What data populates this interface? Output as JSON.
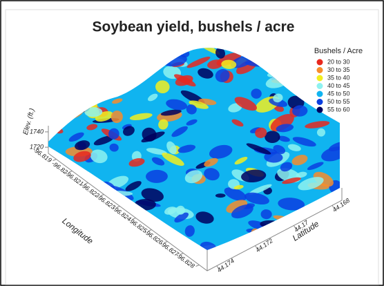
{
  "chart_data": {
    "type": "surface3d",
    "title": "Soybean yield, bushels / acre",
    "legend_title": "Bushels / Acre",
    "legend": [
      {
        "label": "20  to  30",
        "color": "#e8281e"
      },
      {
        "label": "30  to  35",
        "color": "#f78c2c"
      },
      {
        "label": "35  to  40",
        "color": "#f2ee1e"
      },
      {
        "label": "40  to  45",
        "color": "#8ef2f0"
      },
      {
        "label": "45  to  50",
        "color": "#10b4f0"
      },
      {
        "label": "50  to  55",
        "color": "#0a3ee0"
      },
      {
        "label": "55  to  60",
        "color": "#00005e"
      }
    ],
    "xlabel": "Longitude",
    "xlim": [
      -96.8185,
      -96.8285
    ],
    "xticks": [
      -96.819,
      -96.82,
      -96.821,
      -96.822,
      -96.823,
      -96.824,
      -96.825,
      -96.826,
      -96.827,
      -96.828
    ],
    "ylabel": "Latitude",
    "ylim": [
      44.1745,
      44.1675
    ],
    "yticks": [
      44.174,
      44.172,
      44.17,
      44.168
    ],
    "zlabel": "Elev. (ft.)",
    "zlim": [
      1712,
      1748
    ],
    "zticks": [
      1720,
      1740
    ]
  }
}
